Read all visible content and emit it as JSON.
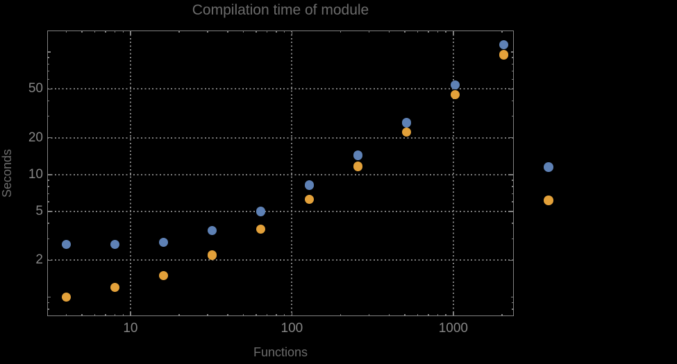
{
  "title": "Compilation time of module",
  "x_axis_label": "Functions",
  "y_axis_label": "Seconds",
  "colors": {
    "background": "#000000",
    "frame": "#828282",
    "grid": "#7e7e7e",
    "tick": "#828282",
    "tick_label_text": "#868686",
    "title_text": "#6b6b6b",
    "axis_label_text": "#6b6b6b",
    "series_blue": "#5E81B5",
    "series_orange": "#E3A13A"
  },
  "legend": {
    "markers": [
      {
        "name": "series-1-marker",
        "series": "blue"
      },
      {
        "name": "series-2-marker",
        "series": "orange"
      }
    ]
  },
  "chart_data": {
    "type": "scatter",
    "title": "Compilation time of module",
    "xlabel": "Functions",
    "ylabel": "Seconds",
    "xscale": "log",
    "yscale": "log",
    "xlim": [
      3.05,
      2370
    ],
    "ylim": [
      0.7,
      150
    ],
    "grid": "dotted",
    "legend_position": "right-outside",
    "x": [
      4,
      8,
      16,
      32,
      64,
      128,
      256,
      512,
      1024,
      2048
    ],
    "series": [
      {
        "name": "blue",
        "color": "#5E81B5",
        "values": [
          2.7,
          2.7,
          2.8,
          3.5,
          5.0,
          8.2,
          14.4,
          26.5,
          54,
          115
        ]
      },
      {
        "name": "orange",
        "color": "#E3A13A",
        "values": [
          1.0,
          1.2,
          1.5,
          2.2,
          3.6,
          6.3,
          11.7,
          22.3,
          45,
          95
        ]
      }
    ],
    "x_ticks": [
      {
        "value": 10,
        "label": "10"
      },
      {
        "value": 100,
        "label": "100"
      },
      {
        "value": 1000,
        "label": "1000"
      }
    ],
    "y_ticks": [
      {
        "value": 2,
        "label": "2"
      },
      {
        "value": 5,
        "label": "5"
      },
      {
        "value": 10,
        "label": "10"
      },
      {
        "value": 20,
        "label": "20"
      },
      {
        "value": 50,
        "label": "50"
      }
    ],
    "x_minor_ticks": [
      4,
      5,
      6,
      7,
      8,
      9,
      20,
      30,
      40,
      50,
      60,
      70,
      80,
      90,
      200,
      300,
      400,
      500,
      600,
      700,
      800,
      900,
      2000
    ],
    "y_minor_ticks": [
      0.8,
      0.9,
      3,
      4,
      6,
      7,
      8,
      9,
      30,
      40,
      60,
      70,
      80,
      90
    ],
    "y_submajor_ticks": [
      1,
      100
    ],
    "x_gridlines": [
      10,
      100,
      1000
    ],
    "y_gridlines": [
      2,
      5,
      10,
      20,
      50
    ]
  }
}
